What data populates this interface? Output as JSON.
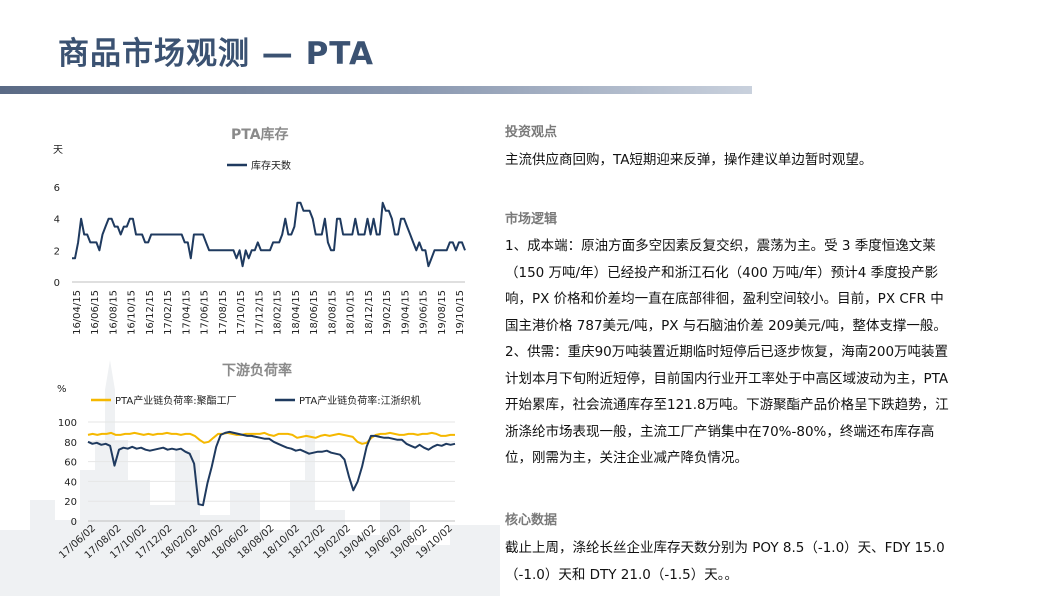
{
  "header": {
    "title": "商品市场观测 — PTA"
  },
  "chart1": {
    "chart_data": {
      "type": "line",
      "title": "PTA库存",
      "ylabel": "天",
      "ylim": [
        0,
        6
      ],
      "yticks": [
        0,
        2,
        4,
        6
      ],
      "x_ticks": [
        "16/04/15",
        "16/06/15",
        "16/08/15",
        "16/10/15",
        "16/12/15",
        "17/02/15",
        "17/04/15",
        "17/06/15",
        "17/08/15",
        "17/10/15",
        "17/12/15",
        "18/02/15",
        "18/04/15",
        "18/06/15",
        "18/08/15",
        "18/10/15",
        "18/12/15",
        "19/02/15",
        "19/04/15",
        "19/06/15",
        "19/08/15",
        "19/10/15"
      ],
      "series": [
        {
          "name": "库存天数",
          "color": "#1f3a5f",
          "values": [
            1.5,
            1.5,
            2.5,
            4,
            3,
            3,
            2.5,
            2.5,
            2.5,
            2,
            3,
            3.5,
            4,
            4,
            3.5,
            3.5,
            3,
            3.5,
            3.5,
            4,
            4,
            3,
            3,
            3,
            2.5,
            2.5,
            3,
            3,
            3,
            3,
            3,
            3,
            3,
            3,
            3,
            3,
            3,
            2.5,
            2.5,
            1.5,
            3,
            3,
            3,
            3,
            2.5,
            2,
            2,
            2,
            2,
            2,
            2,
            2,
            2,
            2,
            1.5,
            2,
            1,
            2,
            1.5,
            2,
            2,
            2.5,
            2,
            2,
            2,
            2,
            2.5,
            2.5,
            2.5,
            3,
            4,
            3,
            3,
            3.5,
            5,
            5,
            4.5,
            4.5,
            4.5,
            4,
            3,
            3,
            3,
            4,
            2.5,
            2,
            2,
            4,
            4,
            3,
            3,
            3,
            3,
            4,
            3,
            3,
            3,
            4,
            3,
            4,
            3,
            3,
            5,
            4.5,
            4.5,
            4,
            3,
            3,
            4,
            4,
            3.5,
            3,
            2.5,
            2,
            2.5,
            2,
            2,
            1,
            1.5,
            2,
            2,
            2,
            2,
            2,
            2.5,
            2.5,
            2,
            2.5,
            2.5,
            2
          ]
        }
      ]
    }
  },
  "chart2": {
    "chart_data": {
      "type": "line",
      "title": "下游负荷率",
      "ylabel": "%",
      "ylim": [
        0,
        100
      ],
      "yticks": [
        0,
        20,
        40,
        60,
        80,
        100
      ],
      "x_ticks": [
        "17/06/02",
        "17/08/02",
        "17/10/02",
        "17/12/02",
        "18/02/02",
        "18/04/02",
        "18/06/02",
        "18/08/02",
        "18/10/02",
        "18/12/02",
        "19/02/02",
        "19/04/02",
        "19/06/02",
        "19/08/02",
        "19/10/02"
      ],
      "series": [
        {
          "name": "PTA产业链负荷率:聚酯工厂",
          "color": "#f5b800",
          "values": [
            87,
            88,
            87,
            88,
            88,
            89,
            87,
            87,
            88,
            88,
            89,
            88,
            87,
            88,
            87,
            88,
            88,
            89,
            88,
            88,
            87,
            88,
            88,
            86,
            82,
            79,
            80,
            84,
            88,
            88,
            89,
            88,
            87,
            87,
            88,
            88,
            88,
            88,
            89,
            87,
            86,
            88,
            88,
            88,
            87,
            84,
            85,
            86,
            85,
            84,
            86,
            87,
            86,
            87,
            88,
            87,
            86,
            85,
            80,
            78,
            79,
            84,
            87,
            88,
            88,
            89,
            88,
            87,
            87,
            88,
            88,
            87,
            88,
            88,
            89,
            88,
            86,
            86,
            87,
            87
          ]
        },
        {
          "name": "PTA产业链负荷率:江浙织机",
          "color": "#1f3a5f",
          "values": [
            80,
            78,
            79,
            77,
            78,
            76,
            56,
            72,
            74,
            73,
            75,
            73,
            74,
            72,
            71,
            72,
            73,
            74,
            72,
            73,
            72,
            73,
            70,
            68,
            58,
            17,
            16,
            38,
            55,
            75,
            87,
            89,
            90,
            89,
            88,
            87,
            86,
            86,
            85,
            84,
            83,
            83,
            80,
            78,
            76,
            74,
            73,
            71,
            72,
            70,
            68,
            69,
            70,
            70,
            71,
            69,
            68,
            67,
            62,
            45,
            31,
            40,
            55,
            75,
            86,
            86,
            85,
            84,
            84,
            83,
            82,
            82,
            78,
            76,
            74,
            77,
            74,
            72,
            75,
            77,
            76,
            78,
            77,
            78
          ]
        }
      ]
    }
  },
  "right": {
    "s1": {
      "heading": "投资观点",
      "p1": "主流供应商回购，TA短期迎来反弹，操作建议单边暂时观望。"
    },
    "s2": {
      "heading": "市场逻辑",
      "l1": "1、成本端：原油方面多空因素反复交织，震荡为主。受 3 季度恒逸文莱",
      "l2": "（150 万吨/年）已经投产和浙江石化（400 万吨/年）预计4 季度投产影",
      "l3": "响，PX 价格和价差均一直在底部徘徊，盈利空间较小。目前，PX CFR 中",
      "l4": "国主港价格 787美元/吨，PX 与石脑油价差 209美元/吨，整体支撑一般。",
      "l5": "2、供需：重庆90万吨装置近期临时短停后已逐步恢复，海南200万吨装置",
      "l6": "计划本月下旬附近短停，目前国内行业开工率处于中高区域波动为主，PTA",
      "l7": "开始累库，社会流通库存至121.8万吨。下游聚酯产品价格呈下跌趋势，江",
      "l8": "浙涤纶市场表现一般，主流工厂产销集中在70%-80%，终端还布库存高",
      "l9": "位，刚需为主，关注企业减产降负情况。"
    },
    "s3": {
      "heading": "核心数据",
      "l1": "截止上周，涤纶长丝企业库存天数分别为 POY 8.5（-1.0）天、FDY 15.0",
      "l2": "（-1.0）天和 DTY 21.0（-1.5）天。。"
    }
  }
}
